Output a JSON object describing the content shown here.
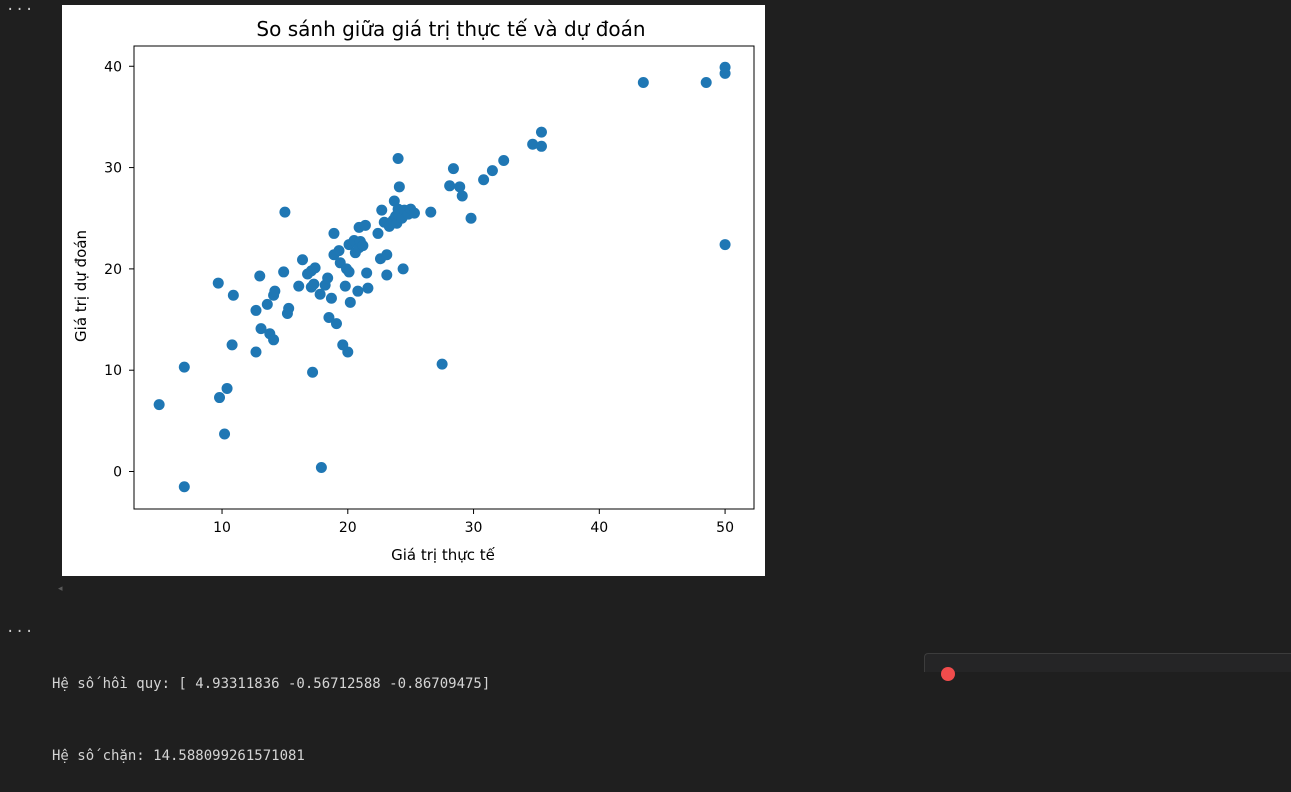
{
  "notebook": {
    "cell_menu_label": "···",
    "output_lines": [
      "Hệ số hồi quy: [ 4.93311836 -0.56712588 -0.86709475]",
      "Hệ số chặn: 14.588099261571081"
    ],
    "scroll_arrow": "◂"
  },
  "colors": {
    "background": "#1f1f1f",
    "plot_background": "#ffffff",
    "marker": "#1f77b4",
    "text": "#d4d4d4"
  },
  "chart_data": {
    "type": "scatter",
    "title": "So sánh giữa giá trị thực tế và dự đoán",
    "xlabel": "Giá trị thực tế",
    "ylabel": "Giá trị dự đoán",
    "xlim": [
      3.0,
      52.3
    ],
    "ylim": [
      -3.7,
      42.0
    ],
    "xticks": [
      10,
      20,
      30,
      40,
      50
    ],
    "yticks": [
      0,
      10,
      20,
      30,
      40
    ],
    "grid": false,
    "series": [
      {
        "points": [
          [
            5.0,
            6.6
          ],
          [
            7.0,
            10.3
          ],
          [
            7.0,
            -1.5
          ],
          [
            9.7,
            18.6
          ],
          [
            9.8,
            7.3
          ],
          [
            10.2,
            3.7
          ],
          [
            10.4,
            8.2
          ],
          [
            10.8,
            12.5
          ],
          [
            10.9,
            17.4
          ],
          [
            12.7,
            11.8
          ],
          [
            12.7,
            15.9
          ],
          [
            13.0,
            19.3
          ],
          [
            13.1,
            14.1
          ],
          [
            13.6,
            16.5
          ],
          [
            13.8,
            13.6
          ],
          [
            14.1,
            13.0
          ],
          [
            14.1,
            17.4
          ],
          [
            14.2,
            17.8
          ],
          [
            14.9,
            19.7
          ],
          [
            15.0,
            25.6
          ],
          [
            15.2,
            15.6
          ],
          [
            15.3,
            16.1
          ],
          [
            16.1,
            18.3
          ],
          [
            16.4,
            20.9
          ],
          [
            16.8,
            19.5
          ],
          [
            17.1,
            18.2
          ],
          [
            17.1,
            19.8
          ],
          [
            17.2,
            9.8
          ],
          [
            17.3,
            18.5
          ],
          [
            17.4,
            20.1
          ],
          [
            17.8,
            17.5
          ],
          [
            17.9,
            0.4
          ],
          [
            18.2,
            18.4
          ],
          [
            18.4,
            19.1
          ],
          [
            18.5,
            15.2
          ],
          [
            18.7,
            17.1
          ],
          [
            18.9,
            23.5
          ],
          [
            18.9,
            21.4
          ],
          [
            19.1,
            14.6
          ],
          [
            19.3,
            21.8
          ],
          [
            19.4,
            20.6
          ],
          [
            19.6,
            12.5
          ],
          [
            19.8,
            18.3
          ],
          [
            19.9,
            20.0
          ],
          [
            20.0,
            11.8
          ],
          [
            20.1,
            22.4
          ],
          [
            20.1,
            19.7
          ],
          [
            20.2,
            16.7
          ],
          [
            20.5,
            22.8
          ],
          [
            20.6,
            21.6
          ],
          [
            20.8,
            17.8
          ],
          [
            20.9,
            22.1
          ],
          [
            20.9,
            24.1
          ],
          [
            21.0,
            22.7
          ],
          [
            21.2,
            22.3
          ],
          [
            21.4,
            24.3
          ],
          [
            21.5,
            19.6
          ],
          [
            21.6,
            18.1
          ],
          [
            22.4,
            23.5
          ],
          [
            22.6,
            21.0
          ],
          [
            22.7,
            25.8
          ],
          [
            22.9,
            24.6
          ],
          [
            23.1,
            21.4
          ],
          [
            23.1,
            19.4
          ],
          [
            23.3,
            24.2
          ],
          [
            23.6,
            24.8
          ],
          [
            23.7,
            26.7
          ],
          [
            23.8,
            25.2
          ],
          [
            23.9,
            24.5
          ],
          [
            24.0,
            25.9
          ],
          [
            24.0,
            30.9
          ],
          [
            24.1,
            28.1
          ],
          [
            24.3,
            25.0
          ],
          [
            24.4,
            20.0
          ],
          [
            24.5,
            25.8
          ],
          [
            24.8,
            25.4
          ],
          [
            25.0,
            25.9
          ],
          [
            25.3,
            25.5
          ],
          [
            26.6,
            25.6
          ],
          [
            27.5,
            10.6
          ],
          [
            28.1,
            28.2
          ],
          [
            28.4,
            29.9
          ],
          [
            28.9,
            28.1
          ],
          [
            29.1,
            27.2
          ],
          [
            29.8,
            25.0
          ],
          [
            30.8,
            28.8
          ],
          [
            31.5,
            29.7
          ],
          [
            32.4,
            30.7
          ],
          [
            34.7,
            32.3
          ],
          [
            35.4,
            33.5
          ],
          [
            35.4,
            32.1
          ],
          [
            43.5,
            38.4
          ],
          [
            48.5,
            38.4
          ],
          [
            50.0,
            39.9
          ],
          [
            50.0,
            39.3
          ],
          [
            50.0,
            22.4
          ]
        ]
      }
    ]
  }
}
